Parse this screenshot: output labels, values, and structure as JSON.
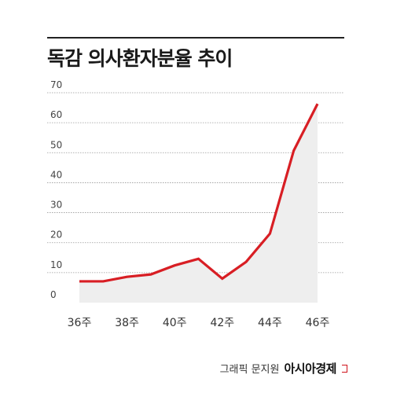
{
  "title": "독감 의사환자분율 추이",
  "credit": {
    "text": "그래픽 문지원",
    "brand": "아시아경제"
  },
  "colors": {
    "line": "#d81e24",
    "area": "#eeeeee",
    "grid": "#999999"
  },
  "chart_data": {
    "type": "line",
    "title": "독감 의사환자분율 추이",
    "xlabel": "",
    "ylabel": "",
    "x": [
      36,
      37,
      38,
      39,
      40,
      41,
      42,
      43,
      44,
      45,
      46
    ],
    "x_tick_labels": [
      "36주",
      "38주",
      "40주",
      "42주",
      "44주",
      "46주"
    ],
    "x_tick_values": [
      36,
      38,
      40,
      42,
      44,
      46
    ],
    "y_ticks": [
      0,
      10,
      20,
      30,
      40,
      50,
      60,
      70
    ],
    "ylim": [
      0,
      70
    ],
    "grid": true,
    "area_fill": true,
    "series": [
      {
        "values": [
          7.1,
          7.1,
          8.6,
          9.4,
          12.4,
          14.6,
          8.0,
          13.6,
          23.0,
          50.7,
          66.3
        ]
      }
    ]
  }
}
